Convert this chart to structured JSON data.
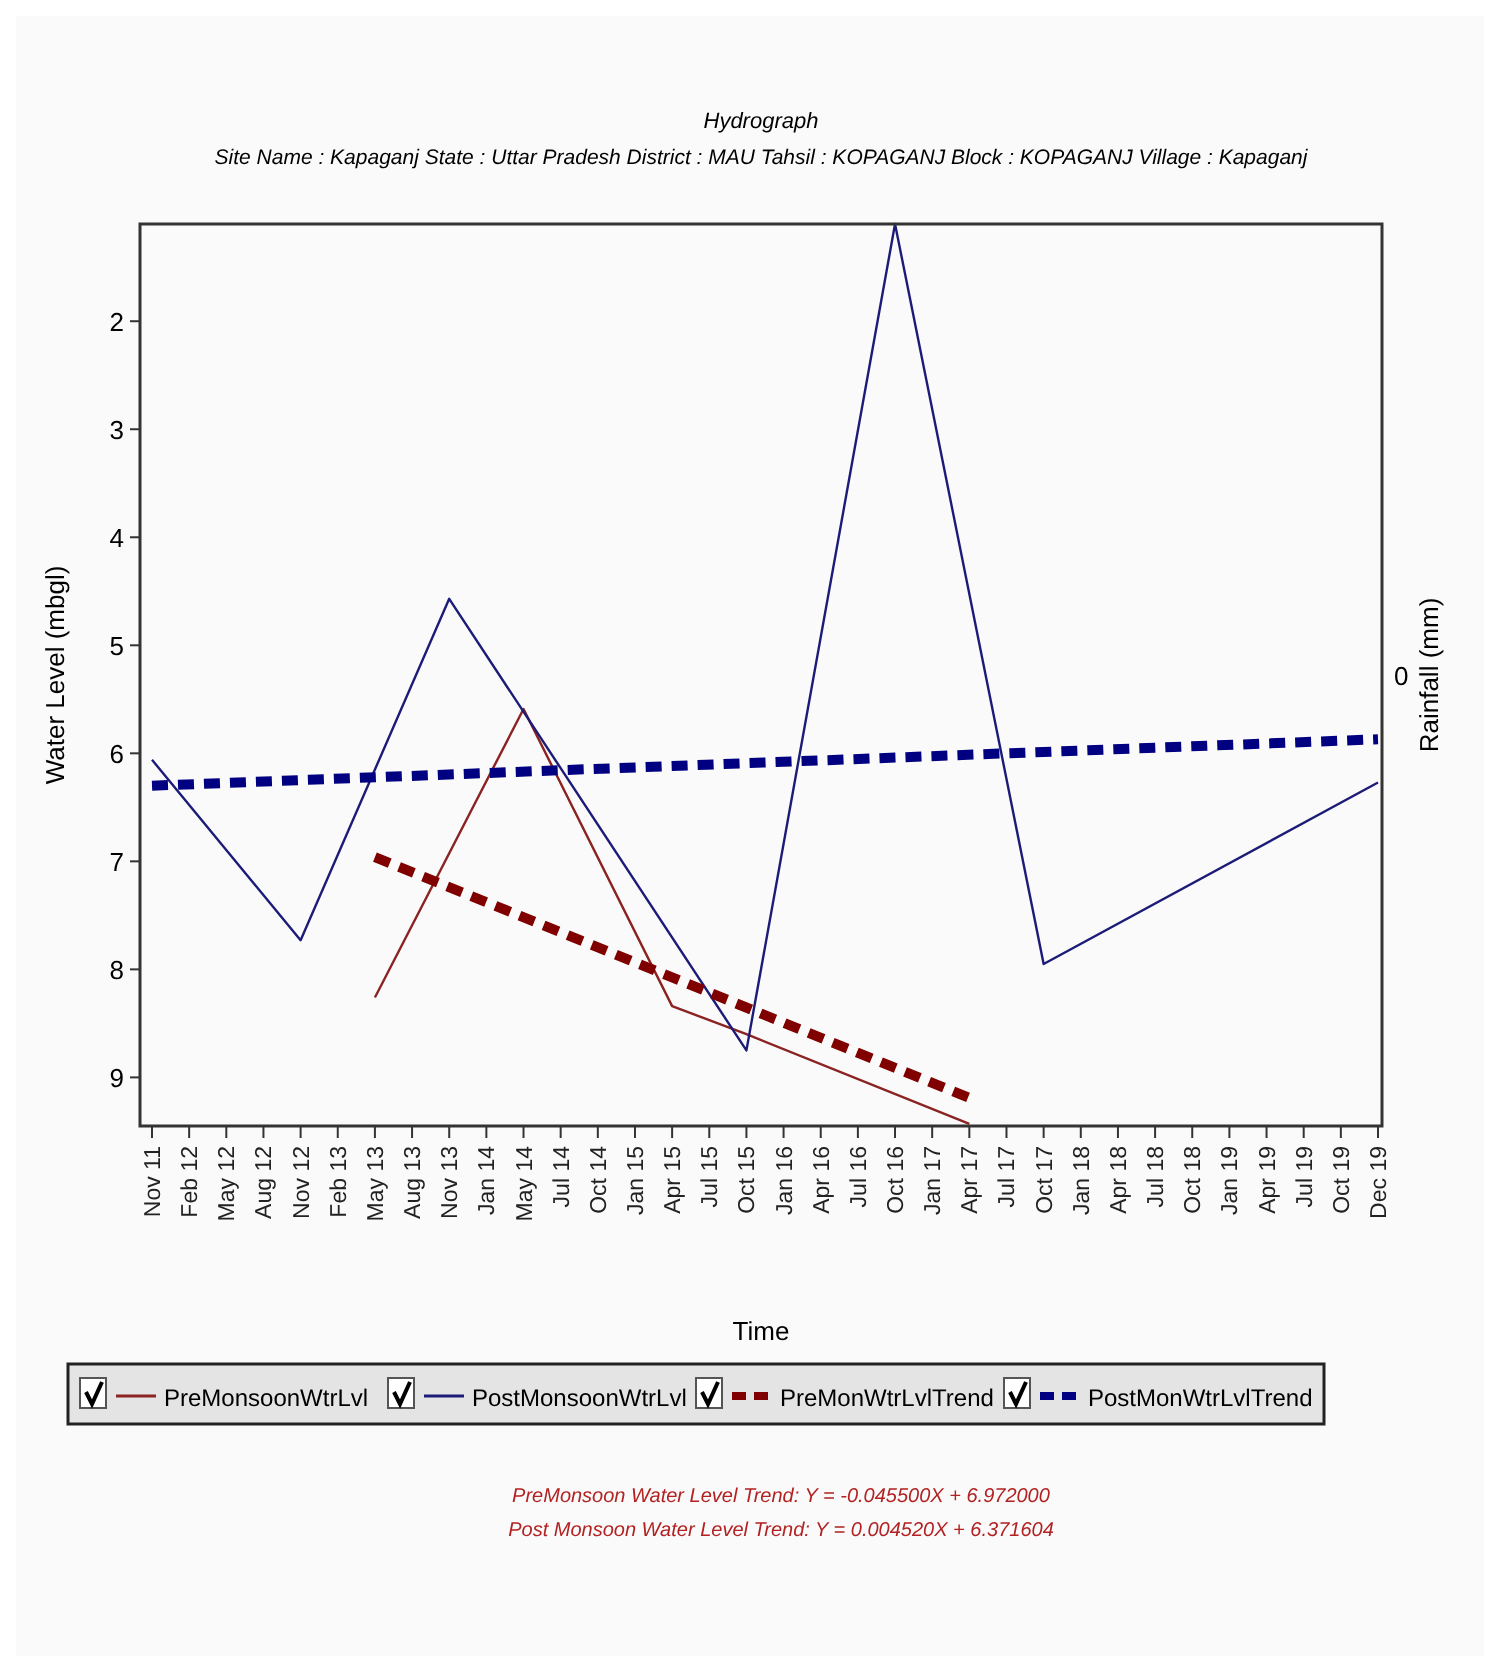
{
  "chart_data": {
    "type": "line",
    "title": "Hydrograph",
    "subtitle": "Site Name : Kapaganj  State : Uttar Pradesh District : MAU  Tahsil : KOPAGANJ  Block : KOPAGANJ Village : Kapaganj",
    "xlabel": "Time",
    "ylabel": "Water Level (mbgl)",
    "y2label": "Rainfall (mm)",
    "categories": [
      "Nov 11",
      "Feb 12",
      "May 12",
      "Aug 12",
      "Nov 12",
      "Feb 13",
      "May 13",
      "Aug 13",
      "Nov 13",
      "Jan 14",
      "May 14",
      "Jul 14",
      "Oct 14",
      "Jan 15",
      "Apr 15",
      "Jul 15",
      "Oct 15",
      "Jan 16",
      "Apr 16",
      "Jul 16",
      "Oct 16",
      "Jan 17",
      "Apr 17",
      "Jul 17",
      "Oct 17",
      "Jan 18",
      "Apr 18",
      "Jul 18",
      "Oct 18",
      "Jan 19",
      "Apr 19",
      "Jul 19",
      "Oct 19",
      "Dec 19"
    ],
    "ylim": [
      9.45,
      1.1
    ],
    "yticks": [
      2,
      3,
      4,
      5,
      6,
      7,
      8,
      9
    ],
    "legend": "bottom",
    "grid": false,
    "marker": "none",
    "series": [
      {
        "name": "PreMonsoonWtrLvl",
        "color": "#8b2323",
        "line_style": "solid",
        "x": [
          "May 13",
          "May 14",
          "Apr 15",
          "Oct 15",
          "Apr 17"
        ],
        "values": [
          8.26,
          5.59,
          8.34,
          8.6,
          9.43
        ]
      },
      {
        "name": "PostMonsoonWtrLvl",
        "color": "#1c1c78",
        "line_style": "solid",
        "x": [
          "Nov 11",
          "Nov 12",
          "Nov 13",
          "Oct 15",
          "Oct 16",
          "Oct 17",
          "Dec 19"
        ],
        "values": [
          6.06,
          7.73,
          4.57,
          8.75,
          1.1,
          7.95,
          6.27
        ]
      },
      {
        "name": "PreMonWtrLvlTrend",
        "color": "#800000",
        "line_style": "dashed",
        "x": [
          "May 13",
          "Apr 17"
        ],
        "values": [
          6.96,
          9.19
        ]
      },
      {
        "name": "PostMonWtrLvlTrend",
        "color": "#000080",
        "line_style": "dashed",
        "x": [
          "Nov 11",
          "Dec 19"
        ],
        "values": [
          6.3,
          5.87
        ]
      }
    ],
    "annotations": [
      "0",
      "PreMonsoon Water Level Trend: Y = -0.045500X + 6.972000",
      "Post Monsoon Water Level Trend: Y = 0.004520X + 6.371604"
    ]
  }
}
